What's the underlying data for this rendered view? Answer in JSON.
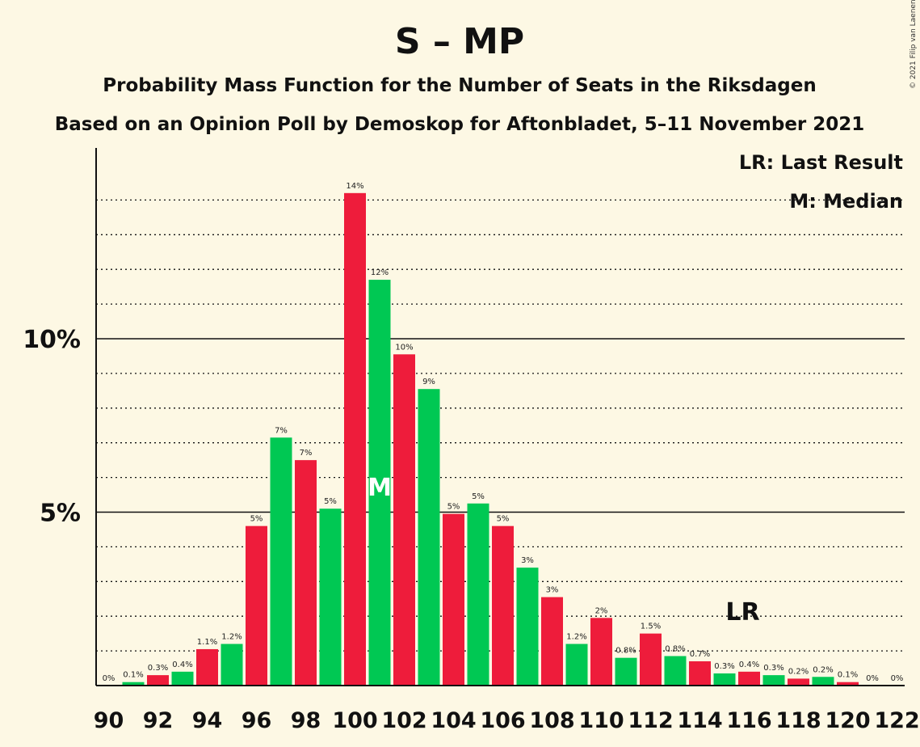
{
  "chart_data": {
    "type": "bar",
    "title": "S – MP",
    "subtitle": "Probability Mass Function for the Number of Seats in the Riksdagen",
    "subtitle2": "Based on an Opinion Poll by Demoskop for Aftonbladet, 5–11 November 2021",
    "copyright": "© 2021 Filip van Laenen",
    "legend": {
      "last_result": "LR: Last Result",
      "median": "M: Median",
      "placement": "top-right"
    },
    "ylim": [
      0,
      15.5
    ],
    "yticks": [
      {
        "value": 5,
        "label": "5%"
      },
      {
        "value": 10,
        "label": "10%"
      }
    ],
    "xtick_labels": [
      "90",
      "92",
      "94",
      "96",
      "98",
      "100",
      "102",
      "104",
      "106",
      "108",
      "110",
      "112",
      "114",
      "116",
      "118",
      "120",
      "122"
    ],
    "xtick_values": [
      90,
      92,
      94,
      96,
      98,
      100,
      102,
      104,
      106,
      108,
      110,
      112,
      114,
      116,
      118,
      120,
      122
    ],
    "seats": [
      90,
      91,
      92,
      93,
      94,
      95,
      96,
      97,
      98,
      99,
      100,
      101,
      102,
      103,
      104,
      105,
      106,
      107,
      108,
      109,
      110,
      111,
      112,
      113,
      114,
      115,
      116,
      117,
      118,
      119,
      120,
      121,
      122
    ],
    "values": [
      0,
      0.1,
      0.3,
      0.4,
      1.05,
      1.2,
      4.6,
      7.15,
      6.5,
      5.1,
      14.2,
      11.7,
      9.55,
      8.55,
      4.95,
      5.25,
      4.6,
      3.4,
      2.55,
      1.2,
      1.95,
      0.8,
      1.5,
      0.85,
      0.7,
      0.35,
      0.4,
      0.3,
      0.2,
      0.25,
      0.1,
      0,
      0
    ],
    "labels": [
      "0%",
      "0.1%",
      "0.3%",
      "0.4%",
      "1.1%",
      "1.2%",
      "5%",
      "7%",
      "7%",
      "5%",
      "14%",
      "12%",
      "10%",
      "9%",
      "5%",
      "5%",
      "5%",
      "3%",
      "3%",
      "1.2%",
      "2%",
      "0.8%",
      "1.5%",
      "0.8%",
      "0.7%",
      "0.3%",
      "0.4%",
      "0.3%",
      "0.2%",
      "0.2%",
      "0.1%",
      "0%",
      "0%"
    ],
    "colors": {
      "green": "#00c853",
      "red": "#ee1c3b",
      "grid": "#111111"
    },
    "median_seat": 101,
    "median_marker": "M",
    "last_result_seat": 116,
    "last_result_marker": "LR",
    "grid": true
  }
}
